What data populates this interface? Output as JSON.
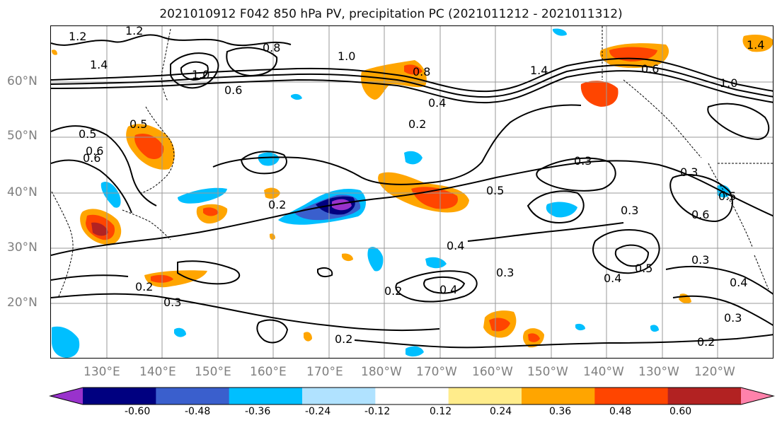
{
  "title": "2021010912 F042 850 hPa PV, precipitation PC (2021011212 - 2021011312)",
  "map": {
    "lat_labels": [
      "60°N",
      "50°N",
      "40°N",
      "30°N",
      "20°N"
    ],
    "lon_labels": [
      "130°E",
      "140°E",
      "150°E",
      "160°E",
      "170°E",
      "180°W",
      "170°W",
      "160°W",
      "150°W",
      "140°W",
      "130°W",
      "120°W"
    ],
    "contour_labels": [
      "1.2",
      "1.2",
      "1.4",
      "0.8",
      "1.0",
      "1.0",
      "0.6",
      "0.8",
      "0.4",
      "0.2",
      "1.4",
      "0.6",
      "1.0",
      "1.4",
      "0.5",
      "0.5",
      "0.6",
      "0.3",
      "0.3",
      "0.2",
      "0.5",
      "0.3",
      "0.6",
      "0.5",
      "0.4",
      "0.3",
      "0.5",
      "0.3",
      "0.4",
      "0.2",
      "0.3",
      "0.2",
      "0.4",
      "0.3",
      "0.2",
      "0.2",
      "0.6",
      "0.4"
    ]
  },
  "colorbar": {
    "ticks": [
      "-0.60",
      "-0.48",
      "-0.36",
      "-0.24",
      "-0.12",
      "0.12",
      "0.24",
      "0.36",
      "0.48",
      "0.60"
    ],
    "colors": [
      "#9932cc",
      "#000080",
      "#3a5fcd",
      "#00bfff",
      "#b0e2ff",
      "#ffffff",
      "#ffec8b",
      "#ffa500",
      "#ff4500",
      "#b22222",
      "#ff82ab"
    ]
  }
}
